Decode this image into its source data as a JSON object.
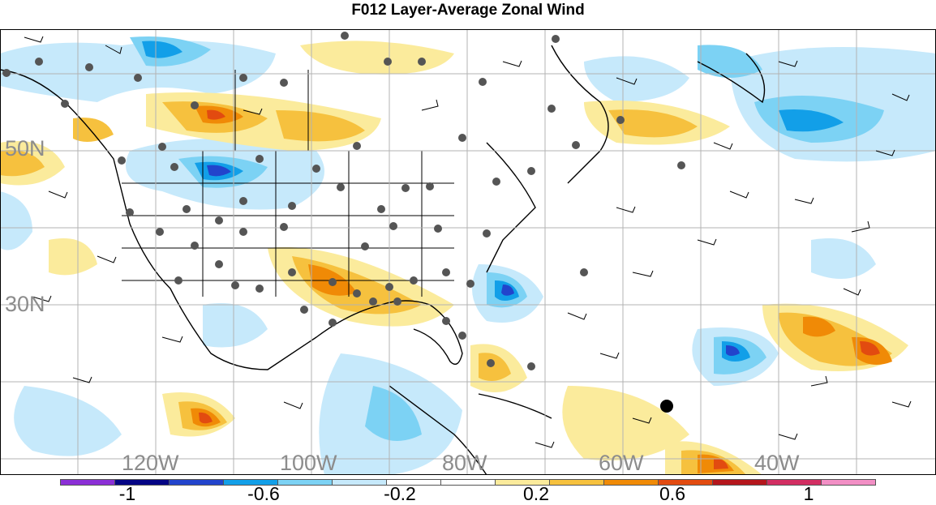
{
  "title": "F012 Layer-Average Zonal Wind",
  "map": {
    "lat_labels": [
      "50N",
      "30N"
    ],
    "lon_labels": [
      "120W",
      "100W",
      "80W",
      "60W",
      "40W"
    ],
    "field": "layer-average zonal wind anomaly",
    "legend_position": "bottom"
  },
  "colorbar": {
    "colors": [
      "#8b2fd6",
      "#050585",
      "#2244cc",
      "#129fe8",
      "#7cd2f4",
      "#c6e9fb",
      "#ffffff",
      "#ffffff",
      "#fbeb9c",
      "#f6c13e",
      "#f08a06",
      "#e24b10",
      "#b5161c",
      "#d22e62",
      "#f28fc5"
    ],
    "tick_labels": [
      "-1",
      "-0.6",
      "-0.2",
      "0.2",
      "0.6",
      "1"
    ]
  }
}
